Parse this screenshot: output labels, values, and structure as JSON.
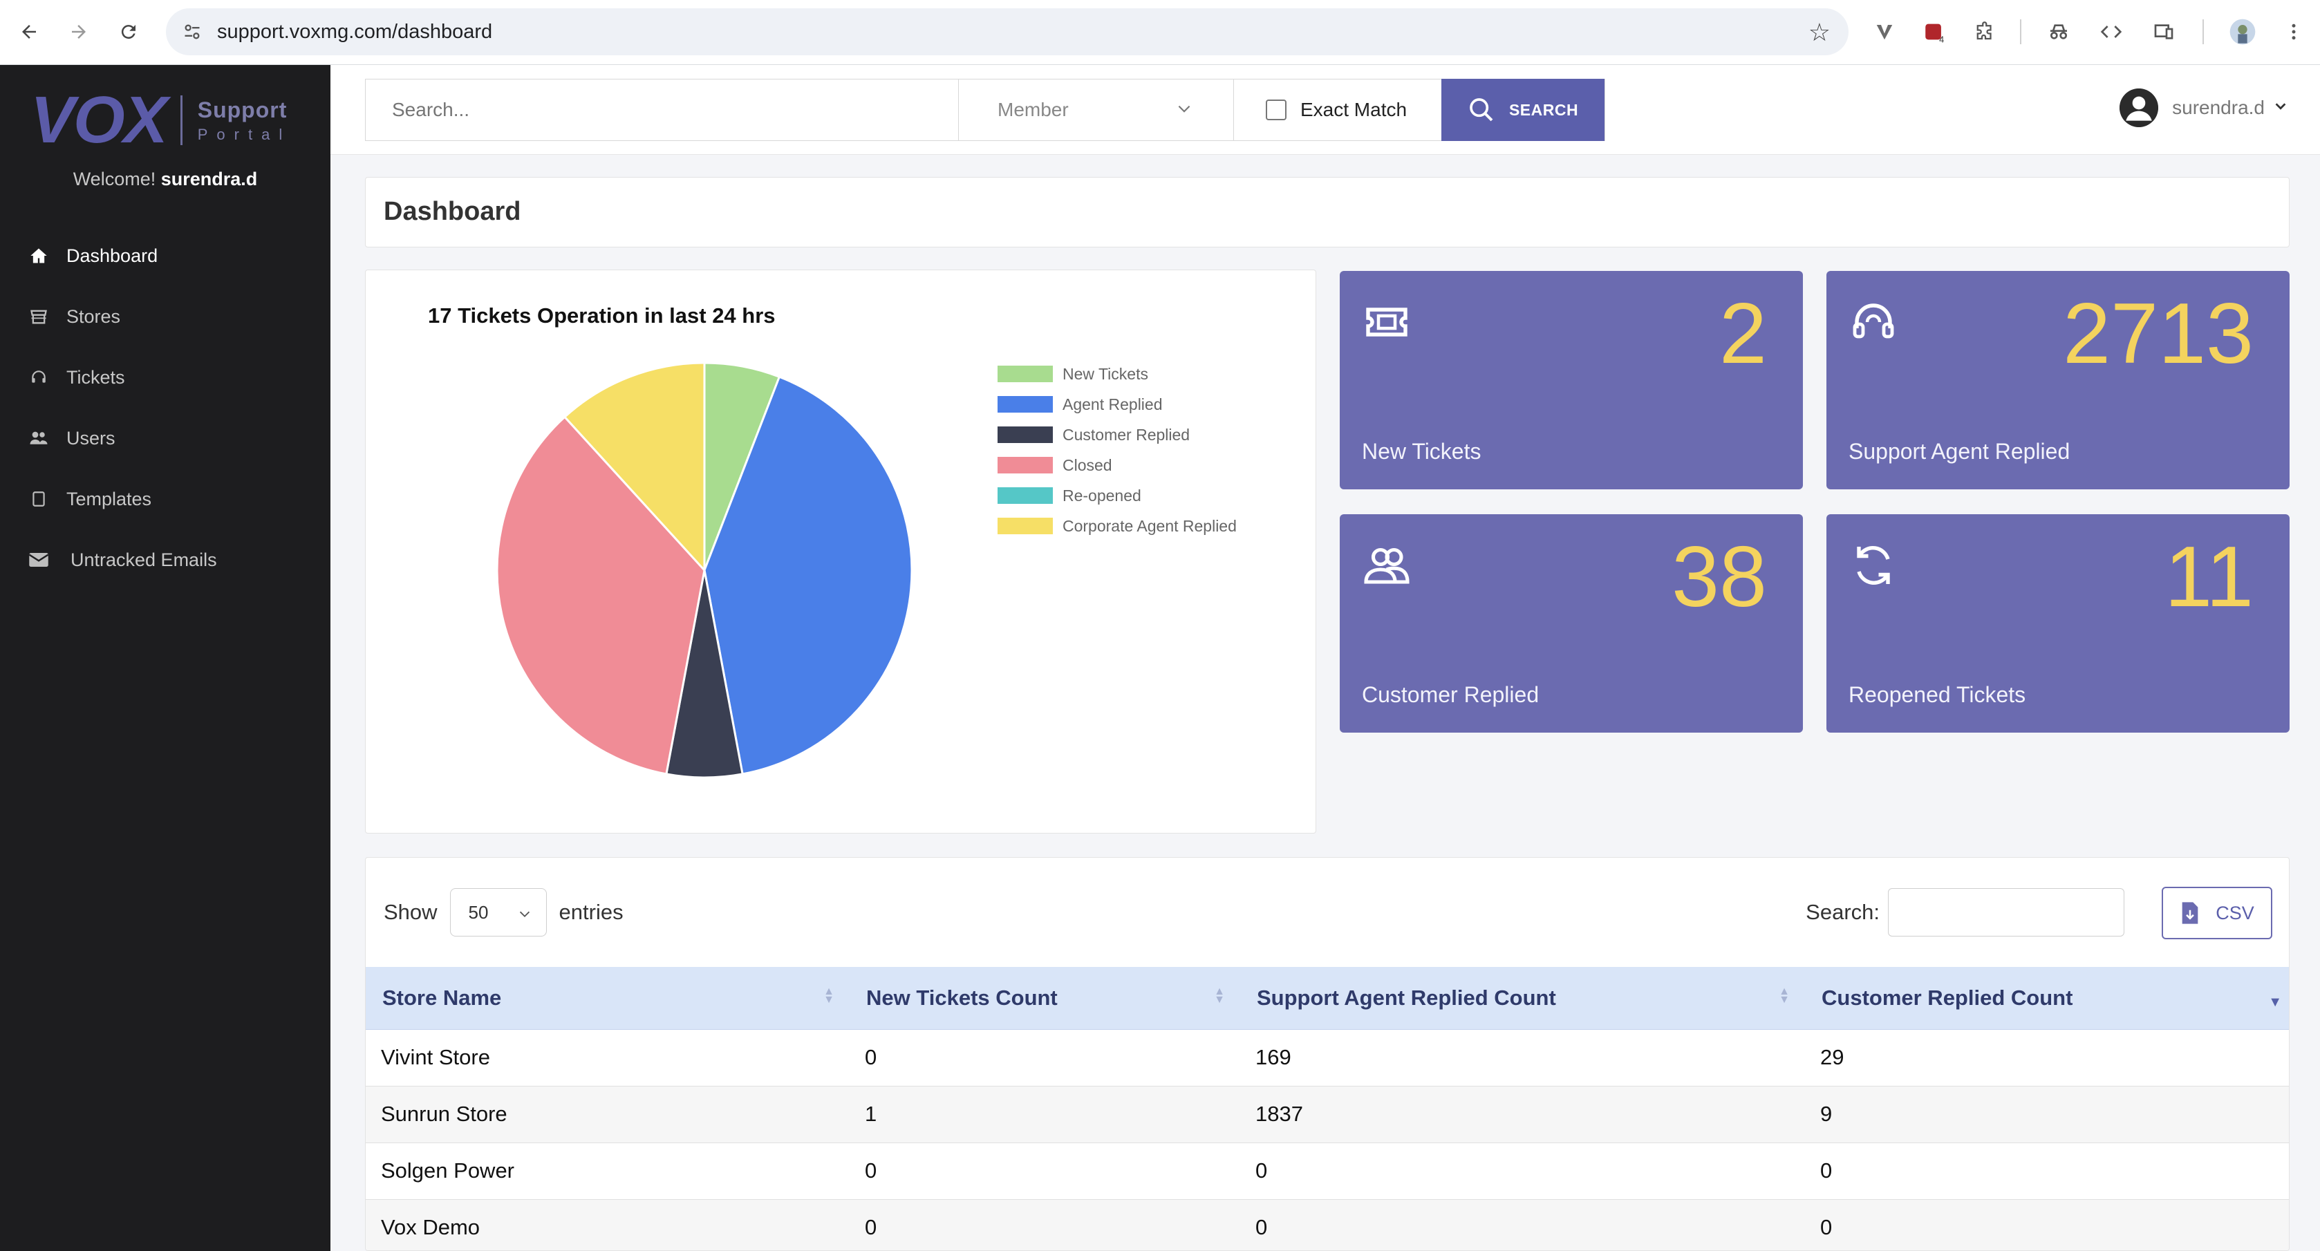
{
  "browser": {
    "url": "support.voxmg.com/dashboard"
  },
  "sidebar": {
    "logo_main": "VOX",
    "logo_sub1": "Support",
    "logo_sub2": "Portal",
    "welcome_prefix": "Welcome!",
    "welcome_user": "surendra.d",
    "items": [
      {
        "label": "Dashboard",
        "icon": "home-icon",
        "active": true
      },
      {
        "label": "Stores",
        "icon": "store-icon",
        "active": false
      },
      {
        "label": "Tickets",
        "icon": "headset-icon",
        "active": false
      },
      {
        "label": "Users",
        "icon": "users-icon",
        "active": false
      },
      {
        "label": "Templates",
        "icon": "document-icon",
        "active": false
      },
      {
        "label": "Untracked Emails",
        "icon": "envelope-icon",
        "active": false
      }
    ]
  },
  "topbar": {
    "search_placeholder": "Search...",
    "member_label": "Member",
    "exact_match_label": "Exact Match",
    "search_button": "SEARCH",
    "username": "surendra.d"
  },
  "page": {
    "title": "Dashboard"
  },
  "chart_data": {
    "type": "pie",
    "title": "17 Tickets Operation in last 24 hrs",
    "legend_position": "right",
    "categories": [
      "New Tickets",
      "Agent Replied",
      "Customer Replied",
      "Closed",
      "Re-opened",
      "Corporate Agent Replied"
    ],
    "values": [
      1,
      7,
      1,
      6,
      0,
      2
    ],
    "colors": [
      "#a8dc8f",
      "#4a7fe8",
      "#3a3f52",
      "#f08c96",
      "#55c7c7",
      "#f6df66"
    ]
  },
  "stats": [
    {
      "value": "2",
      "label": "New Tickets",
      "icon": "ticket-icon"
    },
    {
      "value": "2713",
      "label": "Support Agent Replied",
      "icon": "headset-icon"
    },
    {
      "value": "38",
      "label": "Customer Replied",
      "icon": "users-icon"
    },
    {
      "value": "11",
      "label": "Reopened Tickets",
      "icon": "refresh-icon"
    }
  ],
  "table": {
    "show_label": "Show",
    "entries_value": "50",
    "entries_label": "entries",
    "search_label": "Search:",
    "csv_label": "CSV",
    "columns": [
      "Store Name",
      "New Tickets Count",
      "Support Agent Replied Count",
      "Customer Replied Count"
    ],
    "rows": [
      [
        "Vivint Store",
        "0",
        "169",
        "29"
      ],
      [
        "Sunrun Store",
        "1",
        "1837",
        "9"
      ],
      [
        "Solgen Power",
        "0",
        "0",
        "0"
      ],
      [
        "Vox Demo",
        "0",
        "0",
        "0"
      ]
    ]
  }
}
